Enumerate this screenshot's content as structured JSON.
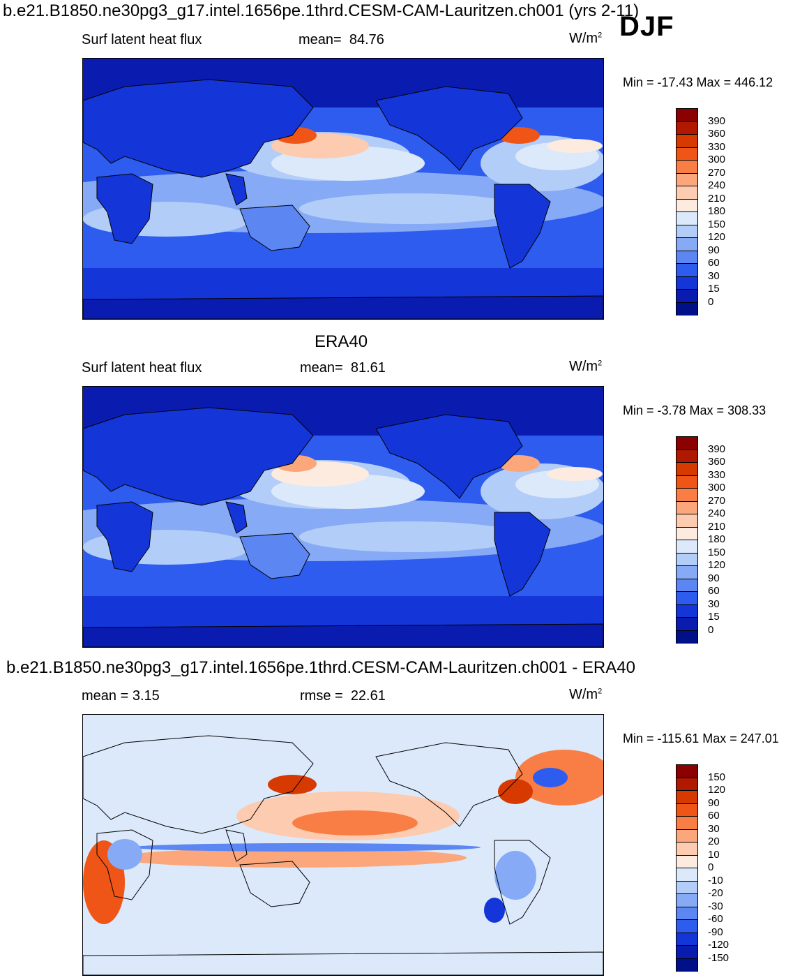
{
  "header": {
    "title": "b.e21.B1850.ne30pg3_g17.intel.1656pe.1thrd.CESM-CAM-Lauritzen.ch001 (yrs 2-11)",
    "season": "DJF"
  },
  "panels": [
    {
      "title": "",
      "left_label": "Surf latent heat flux",
      "stat_label": "mean=",
      "stat_value": "84.76",
      "units": "W/m",
      "units_sup": "2",
      "minmax": "Min = -17.43 Max = 446.12",
      "levels": [
        "390",
        "360",
        "330",
        "300",
        "270",
        "240",
        "210",
        "180",
        "150",
        "120",
        "90",
        "60",
        "30",
        "15",
        "0"
      ],
      "colors": [
        "#8b0000",
        "#b01800",
        "#d63a00",
        "#f05518",
        "#f97e45",
        "#fba77b",
        "#fdcbaf",
        "#fdebe0",
        "#dbe9fb",
        "#b2cdf8",
        "#86aaf5",
        "#5c86f2",
        "#2d5cee",
        "#1435d8",
        "#0a1cb0",
        "#001088"
      ]
    },
    {
      "title": "ERA40",
      "left_label": "Surf latent heat flux",
      "stat_label": "mean=",
      "stat_value": "81.61",
      "units": "W/m",
      "units_sup": "2",
      "minmax": "Min =  -3.78 Max = 308.33",
      "levels": [
        "390",
        "360",
        "330",
        "300",
        "270",
        "240",
        "210",
        "180",
        "150",
        "120",
        "90",
        "60",
        "30",
        "15",
        "0"
      ],
      "colors": [
        "#8b0000",
        "#b01800",
        "#d63a00",
        "#f05518",
        "#f97e45",
        "#fba77b",
        "#fdcbaf",
        "#fdebe0",
        "#dbe9fb",
        "#b2cdf8",
        "#86aaf5",
        "#5c86f2",
        "#2d5cee",
        "#1435d8",
        "#0a1cb0",
        "#001088"
      ]
    },
    {
      "title": "b.e21.B1850.ne30pg3_g17.intel.1656pe.1thrd.CESM-CAM-Lauritzen.ch001 - ERA40",
      "left_label": "mean =   3.15",
      "stat_label": "rmse =",
      "stat_value": "22.61",
      "units": "W/m",
      "units_sup": "2",
      "minmax": "Min = -115.61 Max = 247.01",
      "levels": [
        "150",
        "120",
        "90",
        "60",
        "30",
        "20",
        "10",
        "0",
        "-10",
        "-20",
        "-30",
        "-60",
        "-90",
        "-120",
        "-150"
      ],
      "colors": [
        "#8b0000",
        "#b01800",
        "#d63a00",
        "#f05518",
        "#f97e45",
        "#fba77b",
        "#fdcbaf",
        "#fdebe0",
        "#dbe9fb",
        "#b2cdf8",
        "#86aaf5",
        "#5c86f2",
        "#2d5cee",
        "#1435d8",
        "#0a1cb0",
        "#001088"
      ]
    }
  ]
}
